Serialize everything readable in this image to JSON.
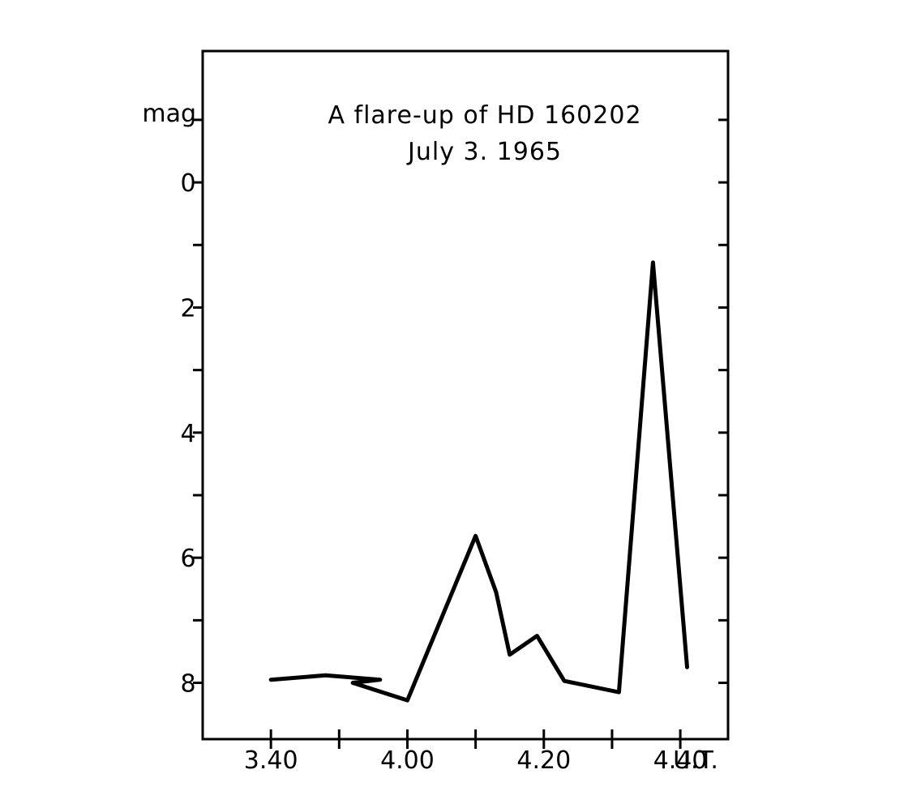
{
  "chart_data": {
    "type": "line",
    "title": "A flare-up of HD 160202",
    "subtitle": "July 3. 1965",
    "xlabel": "U.T.",
    "ylabel": "mag",
    "x_tick_labels": [
      "3.40",
      "4.00",
      "4.20",
      "4.40"
    ],
    "y_tick_labels": [
      "0",
      "2",
      "4",
      "6",
      "8"
    ],
    "xlim": [
      "3.30",
      "4.47"
    ],
    "ylim": [
      -2.1,
      8.9
    ],
    "y_inverted": true,
    "grid": false,
    "series": [
      {
        "points": [
          [
            "3.40",
            7.95
          ],
          [
            "3.48",
            7.88
          ],
          [
            "3.56",
            7.95
          ],
          [
            "3.52",
            8.0
          ],
          [
            "4.00",
            8.28
          ],
          [
            "4.10",
            5.65
          ],
          [
            "4.13",
            6.55
          ],
          [
            "4.15",
            7.55
          ],
          [
            "4.19",
            7.25
          ],
          [
            "4.23",
            7.97
          ],
          [
            "4.31",
            8.15
          ],
          [
            "4.36",
            1.28
          ],
          [
            "4.41",
            7.75
          ]
        ]
      }
    ]
  }
}
